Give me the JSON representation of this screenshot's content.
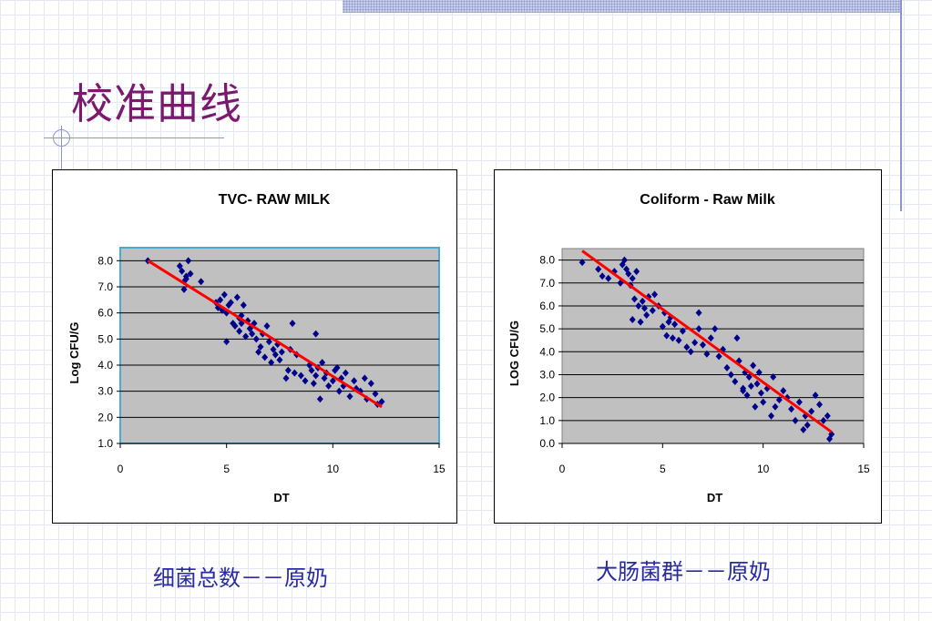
{
  "slide": {
    "title": "校准曲线",
    "caption_left": "细菌总数－－原奶",
    "caption_right": "大肠菌群－－原奶"
  },
  "colors": {
    "title": "#7a1a6e",
    "caption": "#2a2aa0",
    "plot_bg": "#c0c0c0",
    "point": "#00008b",
    "fit_line": "#ff0000"
  },
  "chart_data": [
    {
      "type": "scatter",
      "title": "TVC- RAW MILK",
      "xlabel": "DT",
      "ylabel": "Log CFU/G",
      "xlim": [
        0,
        15
      ],
      "ylim": [
        1.0,
        8.5
      ],
      "xticks": [
        0,
        5,
        10,
        15
      ],
      "yticks": [
        1.0,
        2.0,
        3.0,
        4.0,
        5.0,
        6.0,
        7.0,
        8.0
      ],
      "grid": true,
      "legend": "none",
      "series": [
        {
          "type": "scatter",
          "x": [
            1.3,
            2.8,
            2.9,
            3.0,
            3.1,
            3.2,
            3.3,
            3.0,
            3.1,
            3.8,
            4.5,
            4.6,
            4.7,
            4.8,
            4.9,
            5.0,
            5.1,
            5.2,
            5.3,
            5.4,
            5.5,
            5.6,
            5.6,
            5.7,
            5.8,
            5.9,
            6.0,
            6.1,
            6.2,
            6.3,
            6.4,
            6.5,
            6.6,
            6.7,
            6.8,
            6.9,
            7.0,
            7.1,
            7.2,
            7.3,
            7.4,
            7.5,
            7.6,
            7.8,
            7.9,
            8.0,
            8.2,
            8.3,
            8.5,
            8.7,
            8.9,
            9.0,
            9.1,
            9.2,
            9.3,
            9.4,
            9.5,
            9.6,
            9.7,
            9.8,
            10.0,
            10.1,
            10.2,
            10.3,
            10.4,
            10.5,
            10.6,
            10.8,
            11.0,
            11.1,
            11.3,
            11.5,
            11.6,
            11.8,
            12.0,
            12.1,
            12.3,
            5.7,
            6.1,
            9.2,
            8.1,
            5.0
          ],
          "y": [
            8.0,
            7.8,
            7.6,
            7.2,
            7.4,
            8.0,
            7.5,
            6.9,
            7.3,
            7.2,
            6.4,
            6.2,
            6.5,
            6.1,
            6.7,
            6.0,
            6.3,
            6.4,
            5.6,
            5.5,
            6.6,
            5.8,
            5.3,
            5.9,
            6.3,
            5.1,
            5.7,
            5.4,
            5.2,
            5.6,
            5.0,
            4.5,
            4.7,
            5.2,
            4.3,
            5.5,
            4.9,
            4.1,
            4.6,
            4.4,
            4.8,
            4.2,
            4.5,
            3.5,
            3.8,
            4.6,
            3.7,
            4.4,
            3.6,
            3.4,
            4.0,
            3.8,
            3.3,
            3.6,
            3.9,
            2.7,
            4.1,
            3.5,
            3.7,
            3.2,
            3.4,
            3.8,
            3.9,
            3.0,
            3.5,
            3.2,
            3.7,
            2.8,
            3.4,
            3.1,
            3.0,
            3.5,
            2.7,
            3.3,
            2.9,
            2.5,
            2.6,
            5.6,
            5.4,
            5.2,
            5.6,
            4.9
          ]
        },
        {
          "type": "line",
          "name": "",
          "x": [
            1.3,
            12.3
          ],
          "y": [
            8.0,
            2.4
          ]
        }
      ]
    },
    {
      "type": "scatter",
      "title": "Coliform - Raw Milk",
      "xlabel": "DT",
      "ylabel": "LOG CFU/G",
      "xlim": [
        0,
        15
      ],
      "ylim": [
        0.0,
        8.5
      ],
      "xticks": [
        0,
        5,
        10,
        15
      ],
      "yticks": [
        0.0,
        1.0,
        2.0,
        3.0,
        4.0,
        5.0,
        6.0,
        7.0,
        8.0
      ],
      "grid": true,
      "legend": "none",
      "series": [
        {
          "type": "scatter",
          "x": [
            1.0,
            1.8,
            2.0,
            2.3,
            2.6,
            2.9,
            3.0,
            3.1,
            3.2,
            3.3,
            3.4,
            3.5,
            3.6,
            3.7,
            3.8,
            3.9,
            4.0,
            4.1,
            4.2,
            4.3,
            4.5,
            4.6,
            4.8,
            5.0,
            5.1,
            5.2,
            5.3,
            5.4,
            5.5,
            5.6,
            5.8,
            6.0,
            6.2,
            6.4,
            6.6,
            6.8,
            7.0,
            7.2,
            7.4,
            7.6,
            7.8,
            8.0,
            8.2,
            8.4,
            8.6,
            8.8,
            9.0,
            9.1,
            9.2,
            9.3,
            9.4,
            9.5,
            9.6,
            9.7,
            9.8,
            9.9,
            10.0,
            10.2,
            10.4,
            10.5,
            10.6,
            10.8,
            11.0,
            11.2,
            11.4,
            11.6,
            11.8,
            12.0,
            12.1,
            12.2,
            12.4,
            12.6,
            12.8,
            13.0,
            13.2,
            13.4,
            6.8,
            8.7,
            9.0,
            3.5,
            13.3
          ],
          "y": [
            7.9,
            7.6,
            7.3,
            7.2,
            7.5,
            7.0,
            7.8,
            8.0,
            7.6,
            7.4,
            6.9,
            7.2,
            6.3,
            7.5,
            6.0,
            5.3,
            6.2,
            5.9,
            5.6,
            6.4,
            5.8,
            6.5,
            6.0,
            5.1,
            5.7,
            4.7,
            5.3,
            5.5,
            4.6,
            5.2,
            4.5,
            4.9,
            4.2,
            4.0,
            4.4,
            5.7,
            4.3,
            3.9,
            4.6,
            5.0,
            3.8,
            4.1,
            3.3,
            3.0,
            2.7,
            3.6,
            2.4,
            3.1,
            2.1,
            2.9,
            2.5,
            3.4,
            1.6,
            2.6,
            3.1,
            2.2,
            1.8,
            2.4,
            1.2,
            2.9,
            1.6,
            1.9,
            2.3,
            2.0,
            1.5,
            1.0,
            1.8,
            0.6,
            1.2,
            0.8,
            1.4,
            2.1,
            1.7,
            1.0,
            1.2,
            0.4,
            5.0,
            4.6,
            2.3,
            5.4,
            0.2
          ]
        },
        {
          "type": "line",
          "name": "",
          "x": [
            1.0,
            13.4
          ],
          "y": [
            8.4,
            0.5
          ]
        }
      ]
    }
  ]
}
